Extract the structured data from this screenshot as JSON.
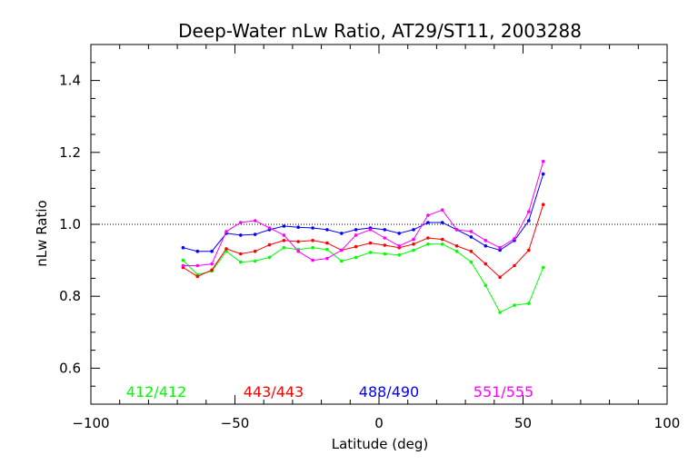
{
  "chart_data": {
    "type": "line",
    "title": "Deep-Water nLw Ratio, AT29/ST11, 2003288",
    "xlabel": "Latitude (deg)",
    "ylabel": "nLw Ratio",
    "xlim": [
      -100,
      100
    ],
    "ylim": [
      0.5,
      1.5
    ],
    "x_ticks": [
      -100,
      -50,
      0,
      50,
      100
    ],
    "x_tick_labels": [
      "−100",
      "−50",
      "0",
      "50",
      "100"
    ],
    "y_ticks": [
      0.6,
      0.8,
      1.0,
      1.2,
      1.4
    ],
    "y_tick_labels": [
      "0.6",
      "0.8",
      "1.0",
      "1.2",
      "1.4"
    ],
    "reference_line": 1.0,
    "grid": false,
    "legend_placement": "bottom, inside plot",
    "x": [
      -68,
      -63,
      -58,
      -53,
      -48,
      -43,
      -38,
      -33,
      -28,
      -23,
      -18,
      -13,
      -8,
      -3,
      2,
      7,
      12,
      17,
      22,
      27,
      32,
      37,
      42,
      47,
      52,
      57
    ],
    "series": [
      {
        "name": "412/412",
        "color": "#00ff00",
        "values": [
          0.9,
          0.86,
          0.87,
          0.925,
          0.895,
          0.898,
          0.908,
          0.935,
          0.93,
          0.935,
          0.93,
          0.898,
          0.908,
          0.922,
          0.918,
          0.915,
          0.928,
          0.945,
          0.945,
          0.925,
          0.895,
          0.83,
          0.755,
          0.775,
          0.78,
          0.88
        ]
      },
      {
        "name": "443/443",
        "color": "#ff0000",
        "values": [
          0.88,
          0.855,
          0.873,
          0.932,
          0.918,
          0.925,
          0.943,
          0.955,
          0.952,
          0.955,
          0.948,
          0.928,
          0.938,
          0.948,
          0.942,
          0.935,
          0.945,
          0.962,
          0.958,
          0.94,
          0.925,
          0.89,
          0.853,
          0.885,
          0.928,
          1.055
        ]
      },
      {
        "name": "488/490",
        "color": "#0000ff",
        "values": [
          0.935,
          0.925,
          0.925,
          0.975,
          0.97,
          0.972,
          0.985,
          0.995,
          0.992,
          0.99,
          0.985,
          0.975,
          0.985,
          0.99,
          0.985,
          0.975,
          0.985,
          1.005,
          1.005,
          0.985,
          0.965,
          0.94,
          0.928,
          0.955,
          1.01,
          1.14
        ]
      },
      {
        "name": "551/555",
        "color": "#ff00ff",
        "values": [
          0.885,
          0.885,
          0.89,
          0.98,
          1.005,
          1.01,
          0.99,
          0.97,
          0.925,
          0.9,
          0.905,
          0.928,
          0.97,
          0.985,
          0.962,
          0.94,
          0.958,
          1.025,
          1.04,
          0.985,
          0.98,
          0.955,
          0.935,
          0.96,
          1.035,
          1.175
        ]
      }
    ]
  }
}
